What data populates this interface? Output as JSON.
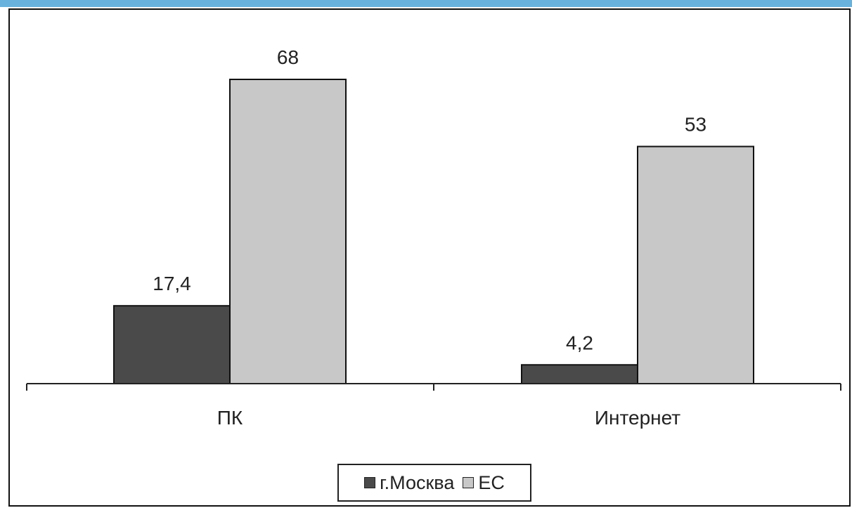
{
  "colors": {
    "stripe": "#69b2de",
    "moscow": "#4a4a4a",
    "eu": "#c8c8c8"
  },
  "chart_data": {
    "type": "bar",
    "categories": [
      "ПК",
      "Интернет"
    ],
    "series": [
      {
        "name": "г.Москва",
        "values": [
          17.4,
          4.2
        ],
        "labels": [
          "17,4",
          "4,2"
        ]
      },
      {
        "name": "ЕС",
        "values": [
          68,
          53
        ],
        "labels": [
          "68",
          "53"
        ]
      }
    ],
    "ylim": [
      0,
      68
    ],
    "grid": false,
    "legend": "bottom-center"
  }
}
